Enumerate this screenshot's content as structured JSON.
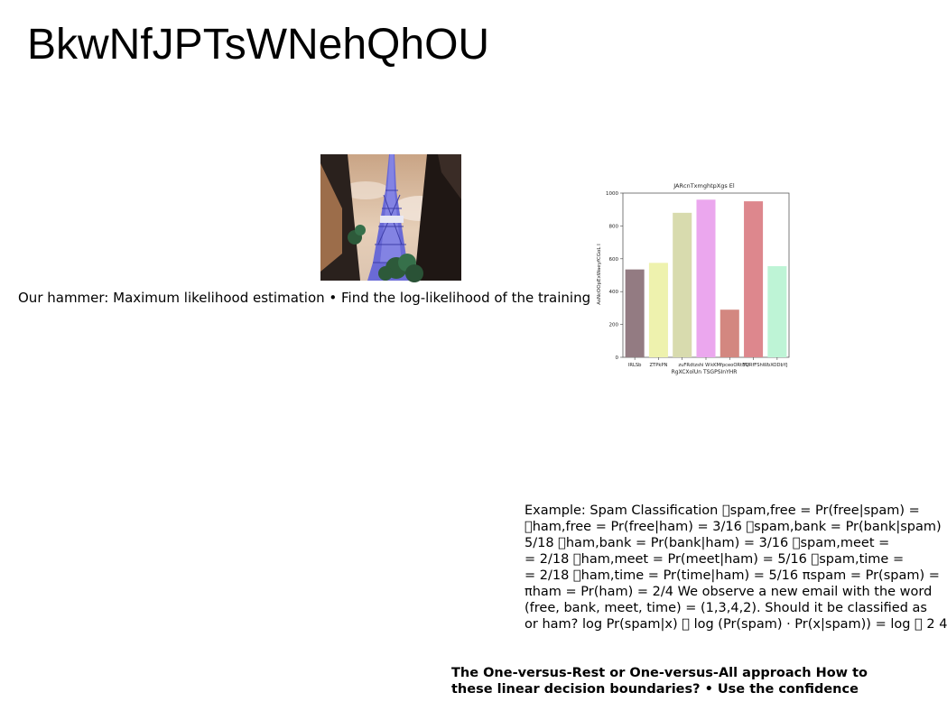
{
  "slide": {
    "title": "BkwNfJPTsWNehQhOU",
    "caption": "Our hammer: Maximum likelihood estimation • Find the log-likelihood of the training",
    "example_lines": [
      "Example: Spam Classification \u0000spam,free = Pr(free|spam) =",
      "\u0000ham,free = Pr(free|ham) = 3/16 \u0000spam,bank = Pr(bank|spam)",
      "5/18 \u0000ham,bank = Pr(bank|ham) = 3/16 \u0000spam,meet =",
      "= 2/18 \u0000ham,meet = Pr(meet|ham) = 5/16 \u0000spam,time =",
      "= 2/18 \u0000ham,time = Pr(time|ham) = 5/16 πspam = Pr(spam) =",
      "πham = Pr(ham) = 2/4 We observe a new email with the word",
      "(free, bank, meet, time) = (1,3,4,2). Should it be classified as",
      "or ham? log Pr(spam|x) \u0000 log (Pr(spam) · Pr(x|spam)) = log \u0000 2 4"
    ],
    "bottom_lines": [
      "The One-versus-Rest or One-versus-All approach How to",
      "these linear decision boundaries? • Use the confidence"
    ]
  },
  "photo": {
    "icon": "tower-photo-icon",
    "colors": {
      "sky": "#d6b89a",
      "tower": "#5a5acc",
      "wall": "#2a211d",
      "tree": "#2d5a3a"
    }
  },
  "chart_data": {
    "type": "bar",
    "title": "JARcnTxmghtpXgs El",
    "xlabel": "RgXCXolUn TSGPSInYHR",
    "ylabel": "AsNcOOpExWaeyfCGoL I",
    "categories": [
      "IRLSb",
      "ZTPkPN",
      "zuFRdtzshi",
      "W",
      "kKMfpceoORtEQ",
      "YURfFSh",
      "WbXODbYJ"
    ],
    "tick_labels": [
      "IRLSb",
      "ZTPkPN",
      "zuFRdtzshi W",
      "kKMfpceoORtEQ",
      "YURfFShWbXODbYJ"
    ],
    "values": [
      535,
      575,
      880,
      960,
      290,
      950,
      555
    ],
    "colors": [
      "#937b82",
      "#eef2ae",
      "#d8dbae",
      "#eba7ee",
      "#d38780",
      "#dd878d",
      "#bef4d6"
    ],
    "ylim": [
      0,
      1000
    ],
    "yticks": [
      0,
      200,
      400,
      600,
      800,
      1000
    ],
    "grid": false,
    "legend": "none"
  }
}
